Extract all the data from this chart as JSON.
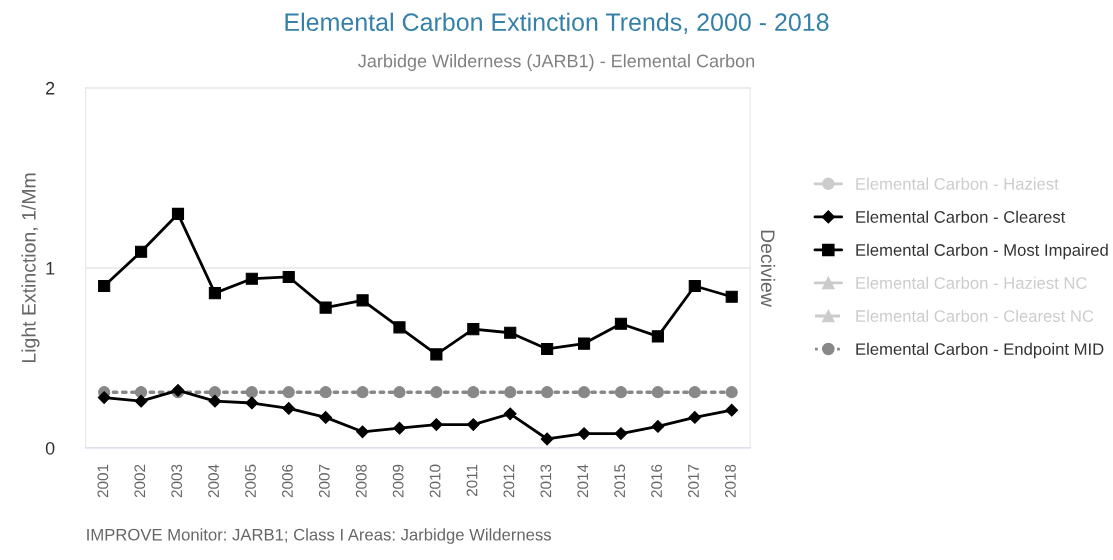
{
  "chart_data": {
    "type": "line",
    "title": "Elemental Carbon Extinction Trends, 2000 - 2018",
    "subtitle": "Jarbidge Wilderness (JARB1) - Elemental Carbon",
    "ylabel": "Light Extinction, 1/Mm",
    "y2label": "Deciview",
    "categories": [
      "2001",
      "2002",
      "2003",
      "2004",
      "2005",
      "2006",
      "2007",
      "2008",
      "2009",
      "2010",
      "2011",
      "2012",
      "2013",
      "2014",
      "2015",
      "2016",
      "2017",
      "2018"
    ],
    "series": [
      {
        "name": "Elemental Carbon - Haziest",
        "color": "#cccccc",
        "marker": "circle",
        "line_style": "solid",
        "values": [
          null,
          null,
          null,
          null,
          null,
          null,
          null,
          null,
          null,
          null,
          null,
          null,
          null,
          null,
          null,
          null,
          null,
          null
        ]
      },
      {
        "name": "Elemental Carbon - Clearest",
        "color": "#000000",
        "marker": "diamond",
        "line_style": "solid",
        "values": [
          0.28,
          0.26,
          0.32,
          0.26,
          0.25,
          0.22,
          0.17,
          0.09,
          0.11,
          0.13,
          0.13,
          0.19,
          0.05,
          0.08,
          0.08,
          0.12,
          0.17,
          0.21
        ]
      },
      {
        "name": "Elemental Carbon - Most Impaired",
        "color": "#000000",
        "marker": "square",
        "line_style": "solid",
        "values": [
          0.9,
          1.09,
          1.3,
          0.86,
          0.94,
          0.95,
          0.78,
          0.82,
          0.67,
          0.52,
          0.66,
          0.64,
          0.55,
          0.58,
          0.69,
          0.62,
          0.9,
          0.84
        ]
      },
      {
        "name": "Elemental Carbon - Haziest NC",
        "color": "#cccccc",
        "marker": "triangle",
        "line_style": "solid",
        "values": [
          null,
          null,
          null,
          null,
          null,
          null,
          null,
          null,
          null,
          null,
          null,
          null,
          null,
          null,
          null,
          null,
          null,
          null
        ]
      },
      {
        "name": "Elemental Carbon - Clearest NC",
        "color": "#cccccc",
        "marker": "triangle",
        "line_style": "dashed",
        "values": [
          null,
          null,
          null,
          null,
          null,
          null,
          null,
          null,
          null,
          null,
          null,
          null,
          null,
          null,
          null,
          null,
          null,
          null
        ]
      },
      {
        "name": "Elemental Carbon - Endpoint MID",
        "color": "#888888",
        "marker": "circle",
        "line_style": "dotted",
        "values": [
          0.31,
          0.31,
          0.31,
          0.31,
          0.31,
          0.31,
          0.31,
          0.31,
          0.31,
          0.31,
          0.31,
          0.31,
          0.31,
          0.31,
          0.31,
          0.31,
          0.31,
          0.31
        ]
      }
    ],
    "ylim": [
      0,
      2
    ],
    "yticks": [
      0,
      1,
      2
    ],
    "grid": "y",
    "legend": "right",
    "annotations": [
      "IMPROVE Monitor: JARB1; Class I Areas: Jarbidge Wilderness"
    ]
  }
}
